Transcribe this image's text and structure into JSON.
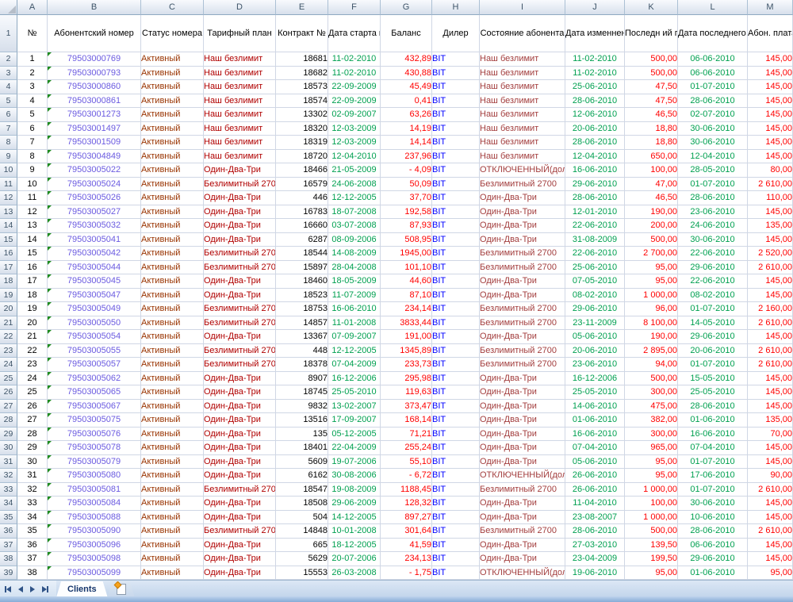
{
  "columns": {
    "letters": [
      "A",
      "B",
      "C",
      "D",
      "E",
      "F",
      "G",
      "H",
      "I",
      "J",
      "K",
      "L",
      "M"
    ]
  },
  "header_row": {
    "number": "1",
    "cells": [
      "№",
      "Абонентский номер",
      "Статус\nномера",
      "Тарифный\nплан",
      "Контракт\n№",
      "Дата\nстарта\nконтракта",
      "Баланс",
      "Дилер",
      "Состояние\nабонента",
      "Дата\nизменнения\nсостояния",
      "Последн\nий\nплатеж",
      "Дата\nпоследнего\nплатежа",
      "Абон.\nплата"
    ]
  },
  "first_data_sheet_row": 2,
  "bold_sheet_row": 21,
  "rows": [
    [
      "1",
      "79503000769",
      "Активный",
      "Наш безлимит",
      "18681",
      "11-02-2010",
      "432,89",
      "BIT",
      "Наш безлимит",
      "11-02-2010",
      "500,00",
      "06-06-2010",
      "145,00"
    ],
    [
      "2",
      "79503000793",
      "Активный",
      "Наш безлимит",
      "18682",
      "11-02-2010",
      "430,88",
      "BIT",
      "Наш безлимит",
      "11-02-2010",
      "500,00",
      "06-06-2010",
      "145,00"
    ],
    [
      "3",
      "79503000860",
      "Активный",
      "Наш безлимит",
      "18573",
      "22-09-2009",
      "45,49",
      "BIT",
      "Наш безлимит",
      "25-06-2010",
      "47,50",
      "01-07-2010",
      "145,00"
    ],
    [
      "4",
      "79503000861",
      "Активный",
      "Наш безлимит",
      "18574",
      "22-09-2009",
      "0,41",
      "BIT",
      "Наш безлимит",
      "28-06-2010",
      "47,50",
      "28-06-2010",
      "145,00"
    ],
    [
      "5",
      "79503001273",
      "Активный",
      "Наш безлимит",
      "13302",
      "02-09-2007",
      "63,26",
      "BIT",
      "Наш безлимит",
      "12-06-2010",
      "46,50",
      "02-07-2010",
      "145,00"
    ],
    [
      "6",
      "79503001497",
      "Активный",
      "Наш безлимит",
      "18320",
      "12-03-2009",
      "14,19",
      "BIT",
      "Наш безлимит",
      "20-06-2010",
      "18,80",
      "30-06-2010",
      "145,00"
    ],
    [
      "7",
      "79503001509",
      "Активный",
      "Наш безлимит",
      "18319",
      "12-03-2009",
      "14,14",
      "BIT",
      "Наш безлимит",
      "28-06-2010",
      "18,80",
      "30-06-2010",
      "145,00"
    ],
    [
      "8",
      "79503004849",
      "Активный",
      "Наш безлимит",
      "18720",
      "12-04-2010",
      "237,96",
      "BIT",
      "Наш безлимит",
      "12-04-2010",
      "650,00",
      "12-04-2010",
      "145,00"
    ],
    [
      "9",
      "79503005022",
      "Активный",
      "Один-Два-Три",
      "18466",
      "21-05-2009",
      "- 4,09",
      "BIT",
      "ОТКЛЮЧЕННЫЙ(дол",
      "16-06-2010",
      "100,00",
      "28-05-2010",
      "80,00"
    ],
    [
      "10",
      "79503005024",
      "Активный",
      "Безлимитный 2700",
      "16579",
      "24-06-2008",
      "50,09",
      "BIT",
      "Безлимитный 2700",
      "29-06-2010",
      "47,00",
      "01-07-2010",
      "2 610,00"
    ],
    [
      "11",
      "79503005026",
      "Активный",
      "Один-Два-Три",
      "446",
      "12-12-2005",
      "37,70",
      "BIT",
      "Один-Два-Три",
      "28-06-2010",
      "46,50",
      "28-06-2010",
      "110,00"
    ],
    [
      "12",
      "79503005027",
      "Активный",
      "Один-Два-Три",
      "16783",
      "18-07-2008",
      "192,58",
      "BIT",
      "Один-Два-Три",
      "12-01-2010",
      "190,00",
      "23-06-2010",
      "145,00"
    ],
    [
      "13",
      "79503005032",
      "Активный",
      "Один-Два-Три",
      "16660",
      "03-07-2008",
      "87,93",
      "BIT",
      "Один-Два-Три",
      "22-06-2010",
      "200,00",
      "24-06-2010",
      "135,00"
    ],
    [
      "14",
      "79503005041",
      "Активный",
      "Один-Два-Три",
      "6287",
      "08-09-2006",
      "508,95",
      "BIT",
      "Один-Два-Три",
      "31-08-2009",
      "500,00",
      "30-06-2010",
      "145,00"
    ],
    [
      "15",
      "79503005042",
      "Активный",
      "Безлимитный 2700",
      "18544",
      "14-08-2009",
      "1945,00",
      "BIT",
      "Безлимитный 2700",
      "22-06-2010",
      "2 700,00",
      "22-06-2010",
      "2 520,00"
    ],
    [
      "16",
      "79503005044",
      "Активный",
      "Безлимитный 2700",
      "15897",
      "28-04-2008",
      "101,10",
      "BIT",
      "Безлимитный 2700",
      "25-06-2010",
      "95,00",
      "29-06-2010",
      "2 610,00"
    ],
    [
      "17",
      "79503005045",
      "Активный",
      "Один-Два-Три",
      "18460",
      "18-05-2009",
      "44,60",
      "BIT",
      "Один-Два-Три",
      "07-05-2010",
      "95,00",
      "22-06-2010",
      "145,00"
    ],
    [
      "18",
      "79503005047",
      "Активный",
      "Один-Два-Три",
      "18523",
      "11-07-2009",
      "87,10",
      "BIT",
      "Один-Два-Три",
      "08-02-2010",
      "1 000,00",
      "08-02-2010",
      "145,00"
    ],
    [
      "19",
      "79503005049",
      "Активный",
      "Безлимитный 2700",
      "18753",
      "16-06-2010",
      "234,14",
      "BIT",
      "Безлимитный 2700",
      "29-06-2010",
      "96,00",
      "01-07-2010",
      "2 160,00"
    ],
    [
      "20",
      "79503005050",
      "Активный",
      "Безлимитный 2700",
      "14857",
      "11-01-2008",
      "3833,44",
      "BIT",
      "Безлимитный 2700",
      "23-11-2009",
      "8 100,00",
      "14-05-2010",
      "2 610,00"
    ],
    [
      "21",
      "79503005054",
      "Активный",
      "Один-Два-Три",
      "13367",
      "07-09-2007",
      "191,00",
      "BIT",
      "Один-Два-Три",
      "05-06-2010",
      "190,00",
      "29-06-2010",
      "145,00"
    ],
    [
      "22",
      "79503005055",
      "Активный",
      "Безлимитный 2700",
      "448",
      "12-12-2005",
      "1345,89",
      "BIT",
      "Безлимитный 2700",
      "20-06-2010",
      "2 895,00",
      "20-06-2010",
      "2 610,00"
    ],
    [
      "23",
      "79503005057",
      "Активный",
      "Безлимитный 2700",
      "18378",
      "07-04-2009",
      "233,73",
      "BIT",
      "Безлимитный 2700",
      "23-06-2010",
      "94,00",
      "01-07-2010",
      "2 610,00"
    ],
    [
      "24",
      "79503005062",
      "Активный",
      "Один-Два-Три",
      "8907",
      "16-12-2006",
      "295,98",
      "BIT",
      "Один-Два-Три",
      "16-12-2006",
      "500,00",
      "15-05-2010",
      "145,00"
    ],
    [
      "25",
      "79503005065",
      "Активный",
      "Один-Два-Три",
      "18745",
      "25-05-2010",
      "119,63",
      "BIT",
      "Один-Два-Три",
      "25-05-2010",
      "300,00",
      "25-05-2010",
      "145,00"
    ],
    [
      "26",
      "79503005067",
      "Активный",
      "Один-Два-Три",
      "9832",
      "13-02-2007",
      "373,47",
      "BIT",
      "Один-Два-Три",
      "14-06-2010",
      "475,00",
      "28-06-2010",
      "145,00"
    ],
    [
      "27",
      "79503005075",
      "Активный",
      "Один-Два-Три",
      "13516",
      "17-09-2007",
      "168,14",
      "BIT",
      "Один-Два-Три",
      "01-06-2010",
      "382,00",
      "01-06-2010",
      "135,00"
    ],
    [
      "28",
      "79503005076",
      "Активный",
      "Один-Два-Три",
      "135",
      "05-12-2005",
      "71,21",
      "BIT",
      "Один-Два-Три",
      "16-06-2010",
      "300,00",
      "16-06-2010",
      "70,00"
    ],
    [
      "29",
      "79503005078",
      "Активный",
      "Один-Два-Три",
      "18401",
      "22-04-2009",
      "255,24",
      "BIT",
      "Один-Два-Три",
      "07-04-2010",
      "965,00",
      "07-04-2010",
      "145,00"
    ],
    [
      "30",
      "79503005079",
      "Активный",
      "Один-Два-Три",
      "5609",
      "19-07-2006",
      "55,10",
      "BIT",
      "Один-Два-Три",
      "05-06-2010",
      "95,00",
      "01-07-2010",
      "145,00"
    ],
    [
      "31",
      "79503005080",
      "Активный",
      "Один-Два-Три",
      "6162",
      "30-08-2006",
      "- 6,72",
      "BIT",
      "ОТКЛЮЧЕННЫЙ(дол",
      "26-06-2010",
      "95,00",
      "17-06-2010",
      "90,00"
    ],
    [
      "32",
      "79503005081",
      "Активный",
      "Безлимитный 2700",
      "18547",
      "19-08-2009",
      "1188,45",
      "BIT",
      "Безлимитный 2700",
      "26-06-2010",
      "1 000,00",
      "01-07-2010",
      "2 610,00"
    ],
    [
      "33",
      "79503005084",
      "Активный",
      "Один-Два-Три",
      "18508",
      "29-06-2009",
      "128,32",
      "BIT",
      "Один-Два-Три",
      "11-04-2010",
      "100,00",
      "30-06-2010",
      "145,00"
    ],
    [
      "34",
      "79503005088",
      "Активный",
      "Один-Два-Три",
      "504",
      "14-12-2005",
      "897,27",
      "BIT",
      "Один-Два-Три",
      "23-08-2007",
      "1 000,00",
      "10-06-2010",
      "145,00"
    ],
    [
      "35",
      "79503005090",
      "Активный",
      "Безлимитный 2700",
      "14848",
      "10-01-2008",
      "301,64",
      "BIT",
      "Безлимитный 2700",
      "28-06-2010",
      "500,00",
      "28-06-2010",
      "2 610,00"
    ],
    [
      "36",
      "79503005096",
      "Активный",
      "Один-Два-Три",
      "665",
      "18-12-2005",
      "41,59",
      "BIT",
      "Один-Два-Три",
      "27-03-2010",
      "139,50",
      "06-06-2010",
      "145,00"
    ],
    [
      "37",
      "79503005098",
      "Активный",
      "Один-Два-Три",
      "5629",
      "20-07-2006",
      "234,13",
      "BIT",
      "Один-Два-Три",
      "23-04-2009",
      "199,50",
      "29-06-2010",
      "145,00"
    ],
    [
      "38",
      "79503005099",
      "Активный",
      "Один-Два-Три",
      "15553",
      "26-03-2008",
      "- 1,75",
      "BIT",
      "ОТКЛЮЧЕННЫЙ(дол",
      "19-06-2010",
      "95,00",
      "01-06-2010",
      "95,00"
    ]
  ],
  "tab_bar": {
    "active_tab": "Clients"
  },
  "colors": {
    "phone": "#6A5AE0",
    "status": "#993300",
    "tariff": "#B00000",
    "date_green": "#00A050",
    "balance_red": "#FF0000",
    "dealer_blue": "#0000FF",
    "state": "#A33E3E",
    "grid_line": "#D0D7E5"
  }
}
